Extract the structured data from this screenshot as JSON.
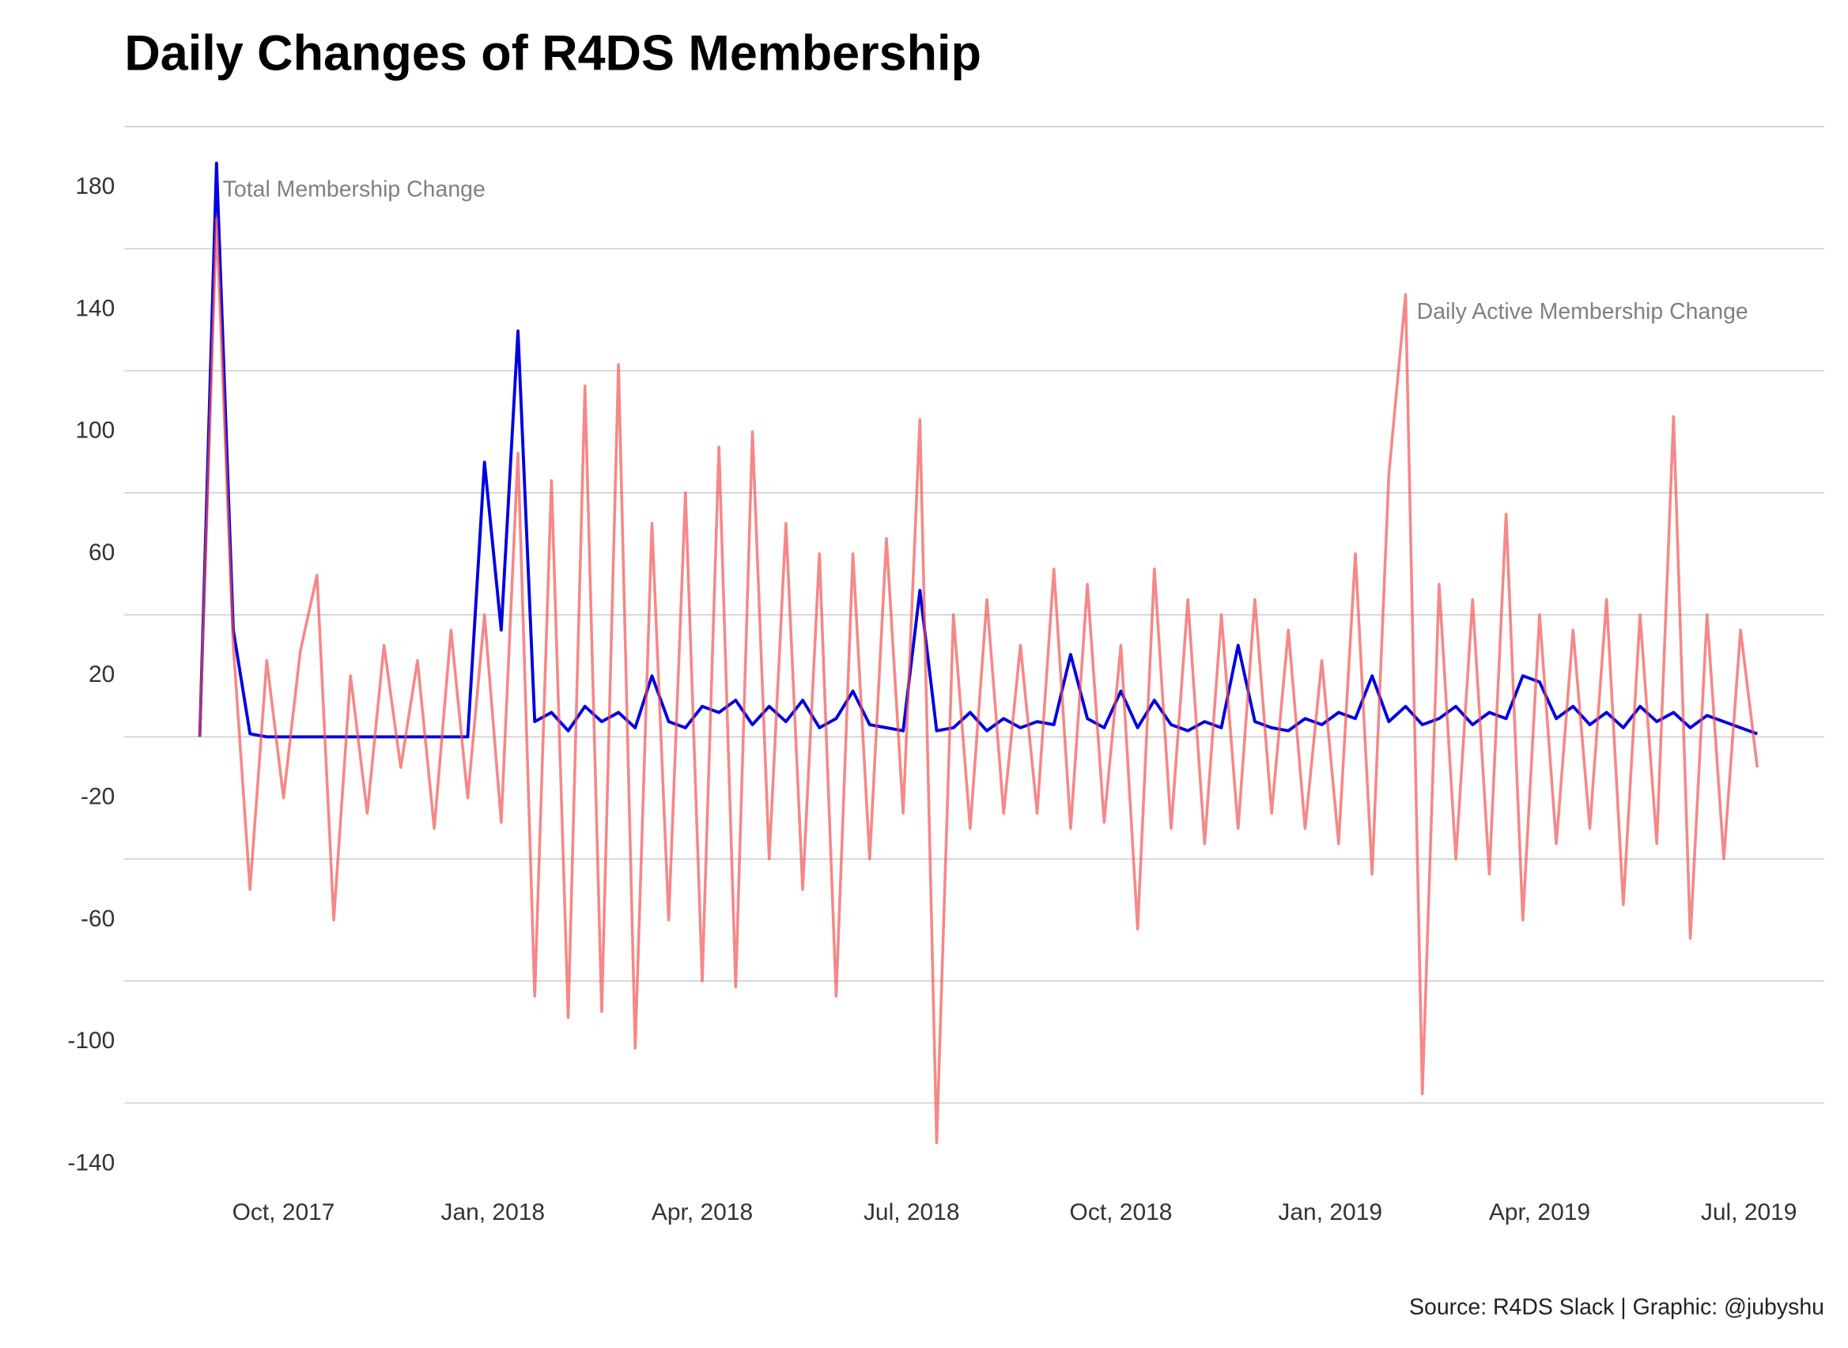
{
  "chart_data": {
    "type": "line",
    "title": "Daily Changes of R4DS Membership",
    "caption": "Source: R4DS Slack | Graphic: @jubyshu",
    "x": [
      2017.65,
      2017.67,
      2017.69,
      2017.71,
      2017.73,
      2017.75,
      2017.77,
      2017.79,
      2017.81,
      2017.83,
      2017.85,
      2017.87,
      2017.89,
      2017.91,
      2017.93,
      2017.95,
      2017.97,
      2017.99,
      2018.01,
      2018.03,
      2018.05,
      2018.07,
      2018.09,
      2018.11,
      2018.13,
      2018.15,
      2018.17,
      2018.19,
      2018.21,
      2018.23,
      2018.25,
      2018.27,
      2018.29,
      2018.31,
      2018.33,
      2018.35,
      2018.37,
      2018.39,
      2018.41,
      2018.43,
      2018.45,
      2018.47,
      2018.49,
      2018.51,
      2018.53,
      2018.55,
      2018.57,
      2018.59,
      2018.61,
      2018.63,
      2018.65,
      2018.67,
      2018.69,
      2018.71,
      2018.73,
      2018.75,
      2018.77,
      2018.79,
      2018.81,
      2018.83,
      2018.85,
      2018.87,
      2018.89,
      2018.91,
      2018.93,
      2018.95,
      2018.97,
      2018.99,
      2019.01,
      2019.03,
      2019.05,
      2019.07,
      2019.09,
      2019.11,
      2019.13,
      2019.15,
      2019.17,
      2019.19,
      2019.21,
      2019.23,
      2019.25,
      2019.27,
      2019.29,
      2019.31,
      2019.33,
      2019.35,
      2019.37,
      2019.39,
      2019.41,
      2019.43,
      2019.45,
      2019.47,
      2019.49,
      2019.51
    ],
    "series": [
      {
        "name": "Total Membership Change",
        "color": "#0000e0",
        "values": [
          0,
          188,
          35,
          1,
          0,
          0,
          0,
          0,
          0,
          0,
          0,
          0,
          0,
          0,
          0,
          0,
          0,
          90,
          35,
          133,
          5,
          8,
          2,
          10,
          5,
          8,
          3,
          20,
          5,
          3,
          10,
          8,
          12,
          4,
          10,
          5,
          12,
          3,
          6,
          15,
          4,
          3,
          2,
          48,
          2,
          3,
          8,
          2,
          6,
          3,
          5,
          4,
          27,
          6,
          3,
          15,
          3,
          12,
          4,
          2,
          5,
          3,
          30,
          5,
          3,
          2,
          6,
          4,
          8,
          6,
          20,
          5,
          10,
          4,
          6,
          10,
          4,
          8,
          6,
          20,
          18,
          6,
          10,
          4,
          8,
          3,
          10,
          5,
          8,
          3,
          7,
          5,
          3,
          1
        ]
      },
      {
        "name": "Daily Active Membership Change",
        "color": "#f05050",
        "values": [
          0,
          170,
          30,
          -50,
          25,
          -20,
          28,
          53,
          -60,
          20,
          -25,
          30,
          -10,
          25,
          -30,
          35,
          -20,
          40,
          -28,
          93,
          -85,
          84,
          -92,
          115,
          -90,
          122,
          -102,
          70,
          -60,
          80,
          -80,
          95,
          -82,
          100,
          -40,
          70,
          -50,
          60,
          -85,
          60,
          -40,
          65,
          -25,
          104,
          -133,
          40,
          -30,
          45,
          -25,
          30,
          -25,
          55,
          -30,
          50,
          -28,
          30,
          -63,
          55,
          -30,
          45,
          -35,
          40,
          -30,
          45,
          -25,
          35,
          -30,
          25,
          -35,
          60,
          -45,
          86,
          145,
          -117,
          50,
          -40,
          45,
          -45,
          73,
          -60,
          40,
          -35,
          35,
          -30,
          45,
          -55,
          40,
          -35,
          105,
          -66,
          40,
          -40,
          35,
          -10
        ]
      }
    ],
    "xlim": [
      2017.56,
      2019.59
    ],
    "xticks": [
      {
        "value": 2017.75,
        "label": "Oct, 2017"
      },
      {
        "value": 2018.0,
        "label": "Jan, 2018"
      },
      {
        "value": 2018.25,
        "label": "Apr, 2018"
      },
      {
        "value": 2018.5,
        "label": "Jul, 2018"
      },
      {
        "value": 2018.75,
        "label": "Oct, 2018"
      },
      {
        "value": 2019.0,
        "label": "Jan, 2019"
      },
      {
        "value": 2019.25,
        "label": "Apr, 2019"
      },
      {
        "value": 2019.5,
        "label": "Jul, 2019"
      }
    ],
    "ylim": [
      -150,
      205
    ],
    "yticks": [
      180,
      140,
      100,
      60,
      20,
      -20,
      -60,
      -100,
      -140
    ],
    "ygrid": [
      200,
      160,
      120,
      80,
      40,
      0,
      -40,
      -80,
      -120
    ],
    "grid": true
  }
}
